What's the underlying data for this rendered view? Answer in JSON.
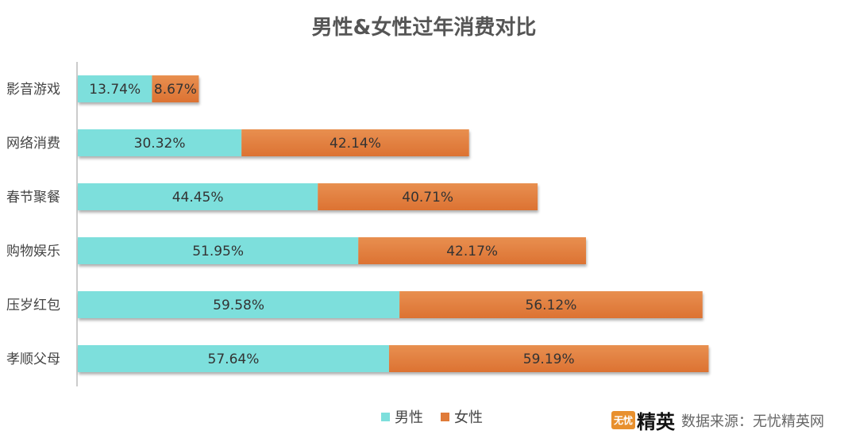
{
  "chart_data": {
    "type": "bar",
    "orientation": "horizontal",
    "stacked": true,
    "title": "男性&女性过年消费对比",
    "categories": [
      "影音游戏",
      "网络消费",
      "春节聚餐",
      "购物娱乐",
      "压岁红包",
      "孝顺父母"
    ],
    "series": [
      {
        "name": "男性",
        "color": "#7ddfdc",
        "values": [
          13.74,
          30.32,
          44.45,
          51.95,
          59.58,
          57.64
        ],
        "labels": [
          "13.74%",
          "30.32%",
          "44.45%",
          "51.95%",
          "59.58%",
          "57.64%"
        ]
      },
      {
        "name": "女性",
        "color": "#e07b39",
        "values": [
          8.67,
          42.14,
          40.71,
          42.17,
          56.12,
          59.19
        ],
        "labels": [
          "8.67%",
          "42.14%",
          "40.71%",
          "42.17%",
          "56.12%",
          "59.19%"
        ]
      }
    ],
    "legend_position": "bottom",
    "grid": false,
    "data_labels": true
  },
  "source": {
    "logo_badge": "无忧",
    "logo_text": "精英",
    "text": "数据来源：无忧精英网"
  }
}
